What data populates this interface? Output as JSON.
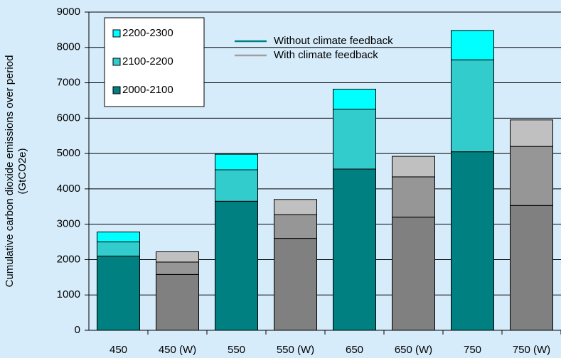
{
  "chart_data": {
    "type": "stacked_bar",
    "ylabel": [
      "Cumulative carbon dioxide emissions over period",
      "(GtCO2e)"
    ],
    "categories": [
      "450",
      "450 (W)",
      "550",
      "550 (W)",
      "650",
      "650 (W)",
      "750",
      "750 (W)"
    ],
    "series": [
      {
        "name": "2000-2100",
        "color": "#008080",
        "colors": [
          "#008080",
          "#808080",
          "#008080",
          "#808080",
          "#008080",
          "#808080",
          "#008080",
          "#808080"
        ],
        "values": [
          2100,
          1580,
          3650,
          2600,
          4560,
          3200,
          5050,
          3530
        ]
      },
      {
        "name": "2100-2200",
        "color": "#33cccc",
        "colors": [
          "#33cccc",
          "#969696",
          "#33cccc",
          "#969696",
          "#33cccc",
          "#969696",
          "#33cccc",
          "#969696"
        ],
        "values": [
          400,
          350,
          890,
          670,
          1690,
          1140,
          2600,
          1670
        ]
      },
      {
        "name": "2200-2300",
        "color": "#00ffff",
        "colors": [
          "#00ffff",
          "#c0c0c0",
          "#00ffff",
          "#c0c0c0",
          "#00ffff",
          "#c0c0c0",
          "#00ffff",
          "#c0c0c0"
        ],
        "values": [
          280,
          290,
          440,
          430,
          570,
          580,
          830,
          750
        ]
      }
    ],
    "line_legend": [
      {
        "name": "Without climate feedback",
        "color": "#008080"
      },
      {
        "name": "With climate feedback",
        "color": "#a0a0a0"
      }
    ],
    "ylim": [
      0,
      9000
    ],
    "yticks": [
      0,
      1000,
      2000,
      3000,
      4000,
      5000,
      6000,
      7000,
      8000,
      9000
    ],
    "grid": true
  }
}
